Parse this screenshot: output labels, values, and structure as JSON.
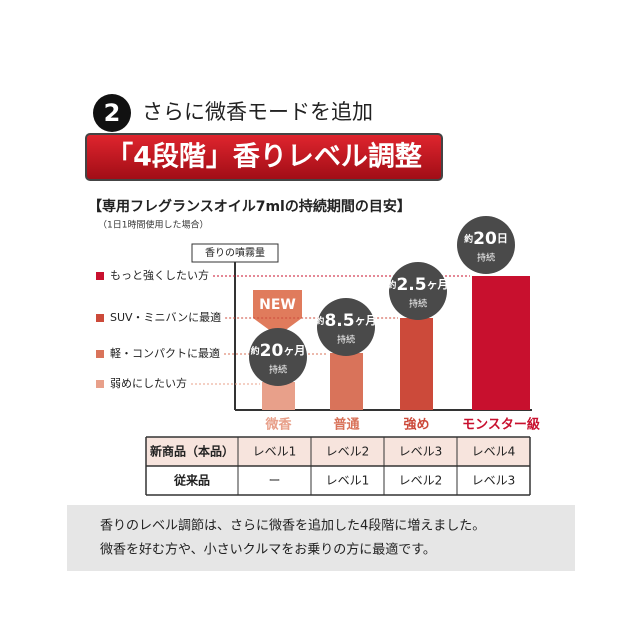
{
  "header": {
    "badge": "2",
    "title": "さらに微香モードを追加",
    "banner": "「4段階」香りレベル調整"
  },
  "section": {
    "title": "【専用フレグランスオイル7mlの持続期間の目安】",
    "note": "（1日1時間使用した場合）",
    "axis_label": "香りの噴霧量"
  },
  "levels": [
    "もっと強くしたい方",
    "SUV・ミニバンに最適",
    "軽・コンパクトに最適",
    "弱めにしたい方"
  ],
  "new_badge": "NEW",
  "bubbles": [
    {
      "prefix": "約",
      "amount": 20,
      "unit": "ヶ月",
      "note": "持続"
    },
    {
      "prefix": "約",
      "amount": 8.5,
      "unit": "ヶ月",
      "note": "持続"
    },
    {
      "prefix": "約",
      "amount": 2.5,
      "unit": "ヶ月",
      "note": "持続"
    },
    {
      "prefix": "約",
      "amount": 20,
      "unit": "日",
      "note": "持続"
    }
  ],
  "categories": [
    "微香",
    "普通",
    "強め",
    "モンスター級"
  ],
  "table": {
    "rows": [
      [
        "新商品（本品）",
        "レベル1",
        "レベル2",
        "レベル3",
        "レベル4"
      ],
      [
        "従来品",
        "ー",
        "レベル1",
        "レベル2",
        "レベル3"
      ]
    ]
  },
  "footer": [
    "香りのレベル調節は、さらに微香を追加した4段階に増えました。",
    "微香を好む方や、小さいクルマをお乗りの方に最適です。"
  ]
}
